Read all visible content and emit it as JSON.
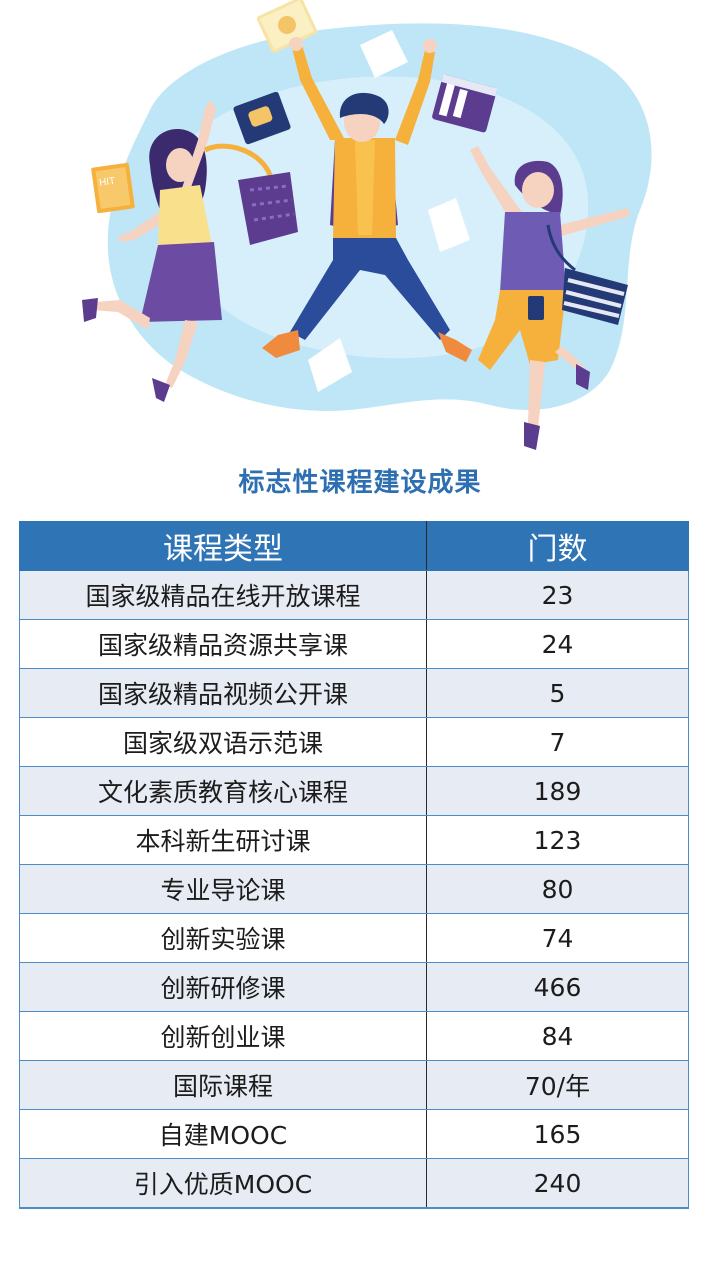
{
  "title": "标志性课程建设成果",
  "illustration": {
    "book_label": "HIT",
    "colors": {
      "blob": "#bfe6f7",
      "shirt_yellow": "#f6b13c",
      "jeans_blue": "#2b4b9b",
      "purple": "#5b3c8f",
      "skin": "#f6d2c0"
    }
  },
  "table": {
    "headers": {
      "type": "课程类型",
      "count": "门数"
    },
    "rows": [
      {
        "type": "国家级精品在线开放课程",
        "count": "23"
      },
      {
        "type": "国家级精品资源共享课",
        "count": "24"
      },
      {
        "type": "国家级精品视频公开课",
        "count": "5"
      },
      {
        "type": "国家级双语示范课",
        "count": "7"
      },
      {
        "type": "文化素质教育核心课程",
        "count": "189"
      },
      {
        "type": "本科新生研讨课",
        "count": "123"
      },
      {
        "type": "专业导论课",
        "count": "80"
      },
      {
        "type": "创新实验课",
        "count": "74"
      },
      {
        "type": "创新研修课",
        "count": "466"
      },
      {
        "type": "创新创业课",
        "count": "84"
      },
      {
        "type": "国际课程",
        "count": "70/年"
      },
      {
        "type": "自建MOOC",
        "count": "165"
      },
      {
        "type": "引入优质MOOC",
        "count": "240"
      }
    ]
  }
}
